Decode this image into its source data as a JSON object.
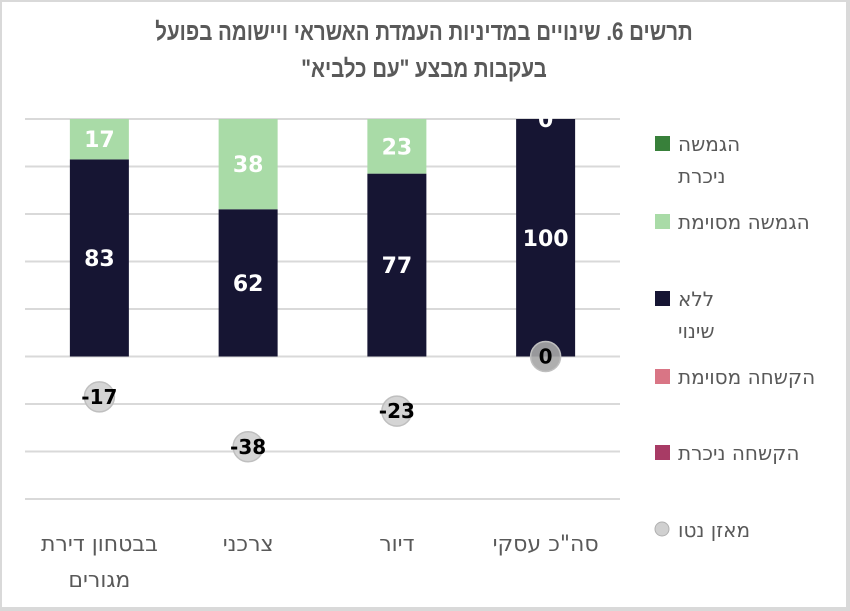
{
  "chart_data": {
    "type": "bar",
    "stacked": true,
    "title": "תרשים 6. שינויים במדיניות העמדת האשראי ויישומה בפועל בעקבות מבצע \"עם כלביא\"",
    "title_lines": [
      "תרשים 6. שינויים במדיניות העמדת האשראי ויישומה בפועל",
      "בעקבות מבצע \"עם כלביא\""
    ],
    "categories": [
      "סה\"כ עסקי",
      "דיור",
      "צרכני",
      "בבטחון דירת מגורים"
    ],
    "category_lines": [
      [
        "סה\"כ עסקי"
      ],
      [
        "דיור"
      ],
      [
        "צרכני"
      ],
      [
        "בבטחון דירת",
        "מגורים"
      ]
    ],
    "series": [
      {
        "name": "הגמשה ניכרת",
        "legend_lines": [
          "הגמשה",
          "ניכרת"
        ],
        "color": "#38803a",
        "values": [
          0,
          0,
          0,
          0
        ],
        "labels_shown": [
          true,
          false,
          false,
          false
        ]
      },
      {
        "name": "הגמשה מסוימת",
        "legend_lines": [
          "הגמשה מסוימת"
        ],
        "color": "#a9dba7",
        "values": [
          0,
          23,
          38,
          17
        ],
        "labels_shown": [
          false,
          true,
          true,
          true
        ]
      },
      {
        "name": "ללא שינוי",
        "legend_lines": [
          "ללא",
          "שינוי"
        ],
        "color": "#161533",
        "values": [
          100,
          77,
          62,
          83
        ],
        "labels_shown": [
          true,
          true,
          true,
          true
        ]
      },
      {
        "name": "הקשחה מסוימת",
        "legend_lines": [
          "הקשחה מסוימת"
        ],
        "color": "#d97585",
        "values": [
          0,
          0,
          0,
          0
        ],
        "labels_shown": [
          false,
          false,
          false,
          false
        ]
      },
      {
        "name": "הקשחה ניכרת",
        "legend_lines": [
          "הקשחה ניכרת"
        ],
        "color": "#a83b65",
        "values": [
          0,
          0,
          0,
          0
        ],
        "labels_shown": [
          false,
          false,
          false,
          false
        ]
      }
    ],
    "net_balance": {
      "name": "מאזן נטו",
      "legend_lines": [
        "מאזן נטו"
      ],
      "color": "#d0d0d0",
      "values": [
        0,
        -23,
        -38,
        -17
      ]
    },
    "ylim": [
      -60,
      100
    ],
    "ytick_step": 20,
    "y_axis_labels_shown": false,
    "grid": true,
    "legend_position": "right",
    "xlabel": "",
    "ylabel": ""
  }
}
